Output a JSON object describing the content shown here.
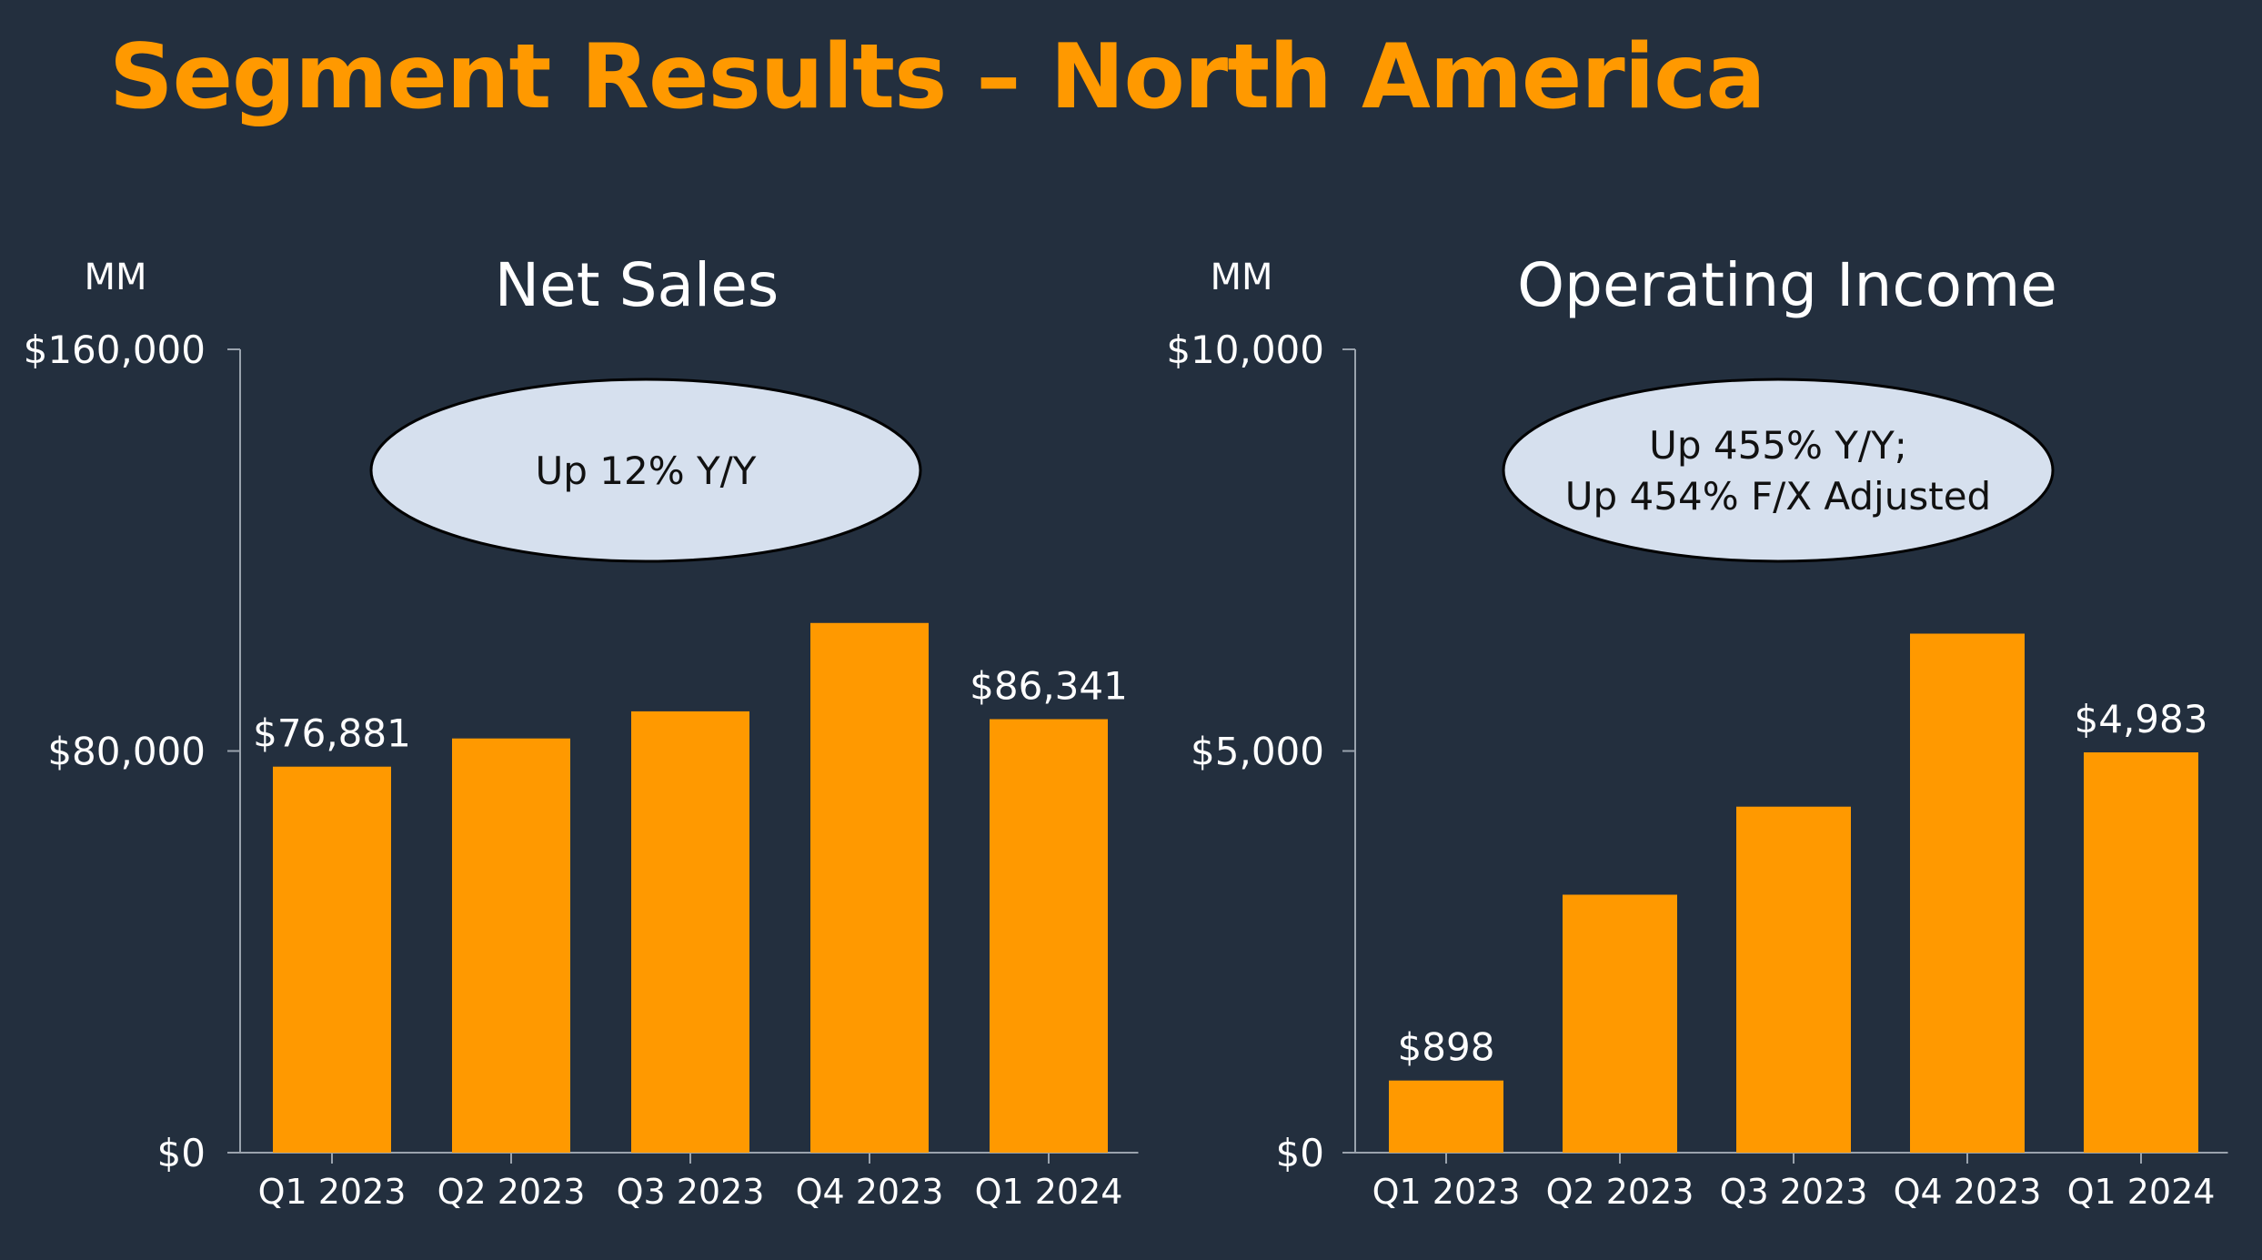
{
  "slide": {
    "title": "Segment Results – North America",
    "colors": {
      "background": "#232f3e",
      "accent": "#ff9900",
      "bar": "#ff9900",
      "callout_fill": "#d6e0ee"
    }
  },
  "chart_data": [
    {
      "type": "bar",
      "title": "Net Sales",
      "unit": "MM",
      "categories": [
        "Q1 2023",
        "Q2 2023",
        "Q3 2023",
        "Q4 2023",
        "Q1 2024"
      ],
      "values": [
        76881,
        82500,
        87900,
        105500,
        86341
      ],
      "ylim": [
        0,
        160000
      ],
      "yticks": [
        0,
        80000,
        160000
      ],
      "ytick_labels": [
        "$0",
        "$80,000",
        "$160,000"
      ],
      "data_labels": [
        {
          "index": 0,
          "text": "$76,881"
        },
        {
          "index": 4,
          "text": "$86,341"
        }
      ],
      "callout": [
        "Up 12% Y/Y"
      ]
    },
    {
      "type": "bar",
      "title": "Operating Income",
      "unit": "MM",
      "categories": [
        "Q1 2023",
        "Q2 2023",
        "Q3 2023",
        "Q4 2023",
        "Q1 2024"
      ],
      "values": [
        898,
        3211,
        4307,
        6461,
        4983
      ],
      "ylim": [
        0,
        10000
      ],
      "yticks": [
        0,
        5000,
        10000
      ],
      "ytick_labels": [
        "$0",
        "$5,000",
        "$10,000"
      ],
      "data_labels": [
        {
          "index": 0,
          "text": "$898"
        },
        {
          "index": 4,
          "text": "$4,983"
        }
      ],
      "callout": [
        "Up 455% Y/Y;",
        "Up 454% F/X Adjusted"
      ]
    }
  ]
}
